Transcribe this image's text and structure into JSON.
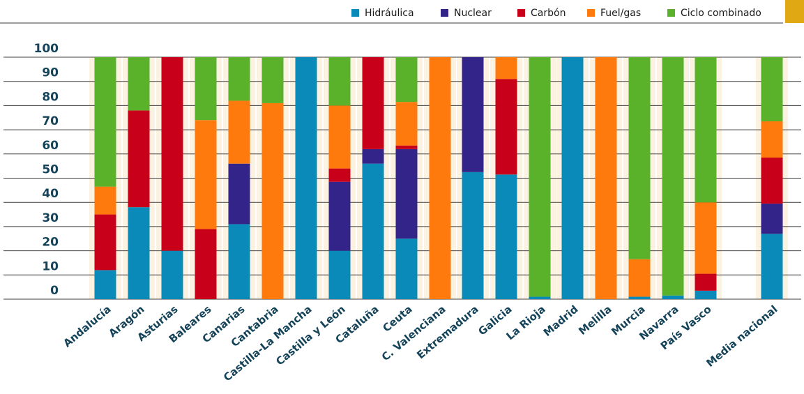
{
  "chart_data": {
    "type": "bar",
    "stacked": true,
    "ylim": [
      0,
      100
    ],
    "yticks": [
      "100",
      "90",
      "80",
      "70",
      "60",
      "50",
      "40",
      "30",
      "20",
      "10",
      "0"
    ],
    "grid": true,
    "legend_position": "top-right",
    "categories": [
      "Andalucía",
      "Aragón",
      "Asturias",
      "Baleares",
      "Canarias",
      "Cantabria",
      "Castilla-La Mancha",
      "Castilla y León",
      "Cataluña",
      "Ceuta",
      "C. Valenciana",
      "Extremadura",
      "Galicia",
      "La Rioja",
      "Madrid",
      "Melilla",
      "Murcia",
      "Navarra",
      "País Vasco",
      "Media nacional"
    ],
    "series": [
      {
        "name": "Hidráulica",
        "color": "#0a8ab9",
        "values": [
          12,
          38,
          20,
          0,
          31,
          0,
          100,
          20,
          56,
          25,
          0,
          52.5,
          51.5,
          1,
          100,
          0,
          1,
          1.5,
          3.5,
          27
        ]
      },
      {
        "name": "Nuclear",
        "color": "#33248a",
        "values": [
          0,
          0,
          0,
          0,
          25,
          0,
          0,
          28.5,
          6,
          37,
          0,
          47.5,
          0,
          0,
          0,
          0,
          0,
          0,
          0,
          12.5
        ]
      },
      {
        "name": "Carbón",
        "color": "#c8001a",
        "values": [
          23,
          40,
          80,
          29,
          0,
          0,
          0,
          5.5,
          38,
          1.5,
          0,
          0,
          39.5,
          0,
          0,
          0,
          0,
          0,
          7,
          19
        ]
      },
      {
        "name": "Fuel/gas",
        "color": "#ff7a0d",
        "values": [
          11.5,
          0,
          0,
          45,
          26,
          81,
          0,
          26,
          0,
          18,
          100,
          0,
          9,
          0,
          0,
          100,
          15.5,
          0,
          29.5,
          15
        ]
      },
      {
        "name": "Ciclo combinado",
        "color": "#5ab22a",
        "values": [
          53.5,
          22,
          0,
          26,
          18,
          19,
          0,
          20,
          0,
          18.5,
          0,
          0,
          0,
          99,
          0,
          0,
          83.5,
          98.5,
          60,
          26.5
        ]
      }
    ],
    "colors": {
      "band": "#fbf2e1",
      "grid": "#3c3c3c",
      "accent": "#e0a812"
    }
  }
}
